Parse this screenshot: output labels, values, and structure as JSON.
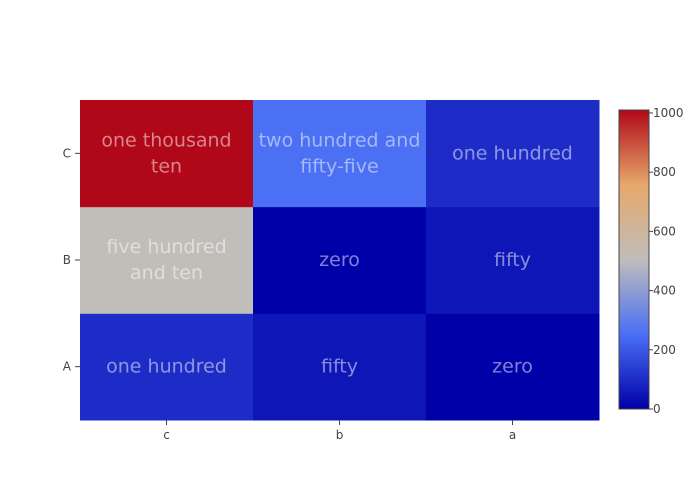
{
  "chart_data": {
    "type": "heatmap",
    "title": "",
    "xlabel": "",
    "ylabel": "",
    "x_categories": [
      "c",
      "b",
      "a"
    ],
    "y_categories": [
      "A",
      "B",
      "C"
    ],
    "z": [
      [
        100,
        50,
        0
      ],
      [
        510,
        0,
        50
      ],
      [
        1010,
        255,
        100
      ]
    ],
    "cell_text": [
      [
        "one hundred",
        "fifty",
        "zero"
      ],
      [
        "five hundred and ten",
        "zero",
        "fifty"
      ],
      [
        "one thousand ten",
        "two hundred and fifty-five",
        "one hundred"
      ]
    ],
    "colorscale": [
      "#0000a8",
      "#4a6ff5",
      "#c0bdba",
      "#e6a86a",
      "#b00818"
    ],
    "zrange": [
      0,
      1010
    ],
    "colorbar_ticks": [
      0,
      200,
      400,
      600,
      800,
      1000
    ],
    "grid": false
  }
}
